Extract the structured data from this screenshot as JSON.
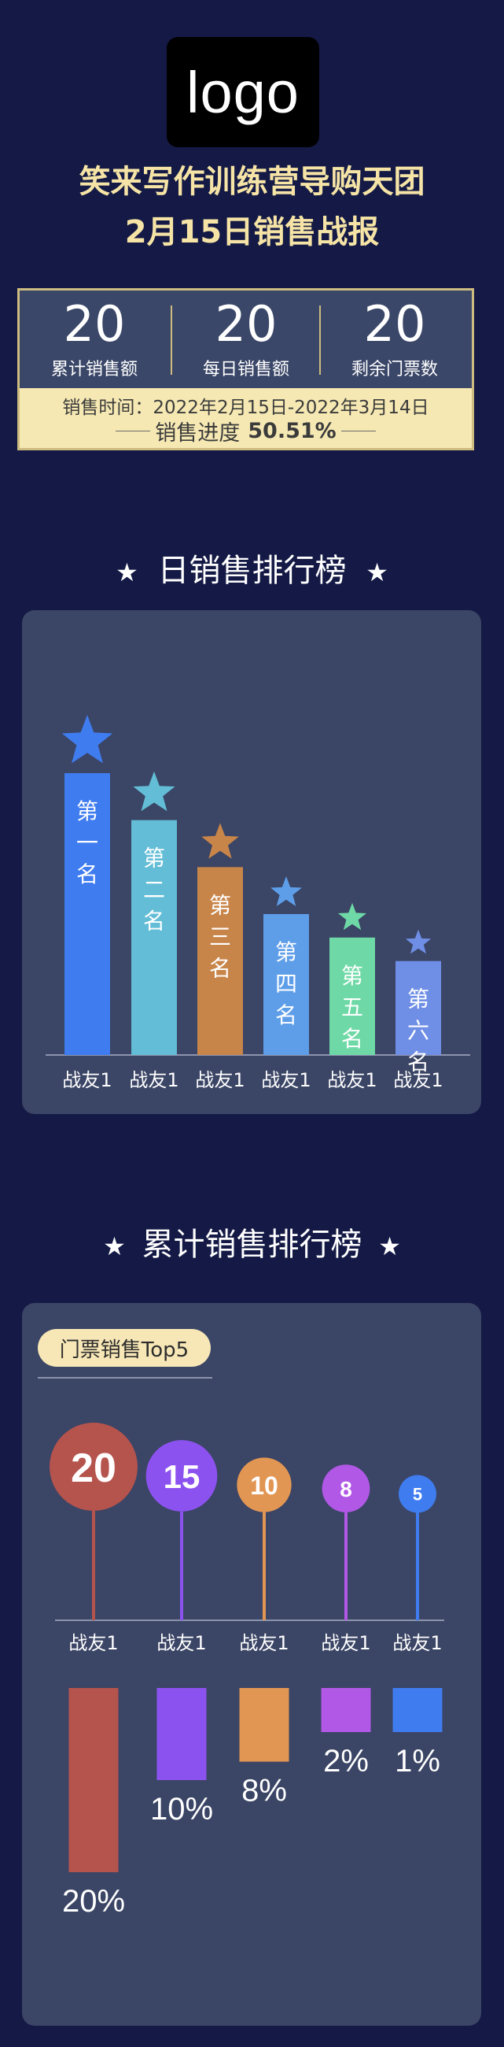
{
  "logo": {
    "text": "logo"
  },
  "header": {
    "title_line1": "笑来写作训练营导购天团",
    "title_line2": "2月15日销售战报"
  },
  "stats": {
    "items": [
      {
        "value": "20",
        "label": "累计销售额"
      },
      {
        "value": "20",
        "label": "每日销售额"
      },
      {
        "value": "20",
        "label": "剩余门票数"
      }
    ],
    "sale_time": "销售时间：2022年2月15日-2022年3月14日",
    "progress_label": "销售进度",
    "progress_value": "50.51%"
  },
  "daily_ranking": {
    "title": "日销售排行榜",
    "star_glyph": "★",
    "chart_data": {
      "type": "bar",
      "categories": [
        "战友1",
        "战友1",
        "战友1",
        "战友1",
        "战友1",
        "战友1"
      ],
      "bar_labels": [
        "第一名",
        "第二名",
        "第三名",
        "第四名",
        "第五名",
        "第六名"
      ],
      "values": [
        6,
        5,
        4,
        3,
        2.5,
        2
      ],
      "colors": [
        "#3f7cef",
        "#63bdd6",
        "#c8854a",
        "#5e9ee9",
        "#6ed9a6",
        "#6f8fe6"
      ],
      "star_colors": [
        "#3f7cef",
        "#63bdd6",
        "#c8854a",
        "#5e9ee9",
        "#6ed9a6",
        "#6f8fe6"
      ]
    }
  },
  "cumulative_ranking": {
    "title": "累计销售排行榜",
    "star_glyph": "★",
    "tag": "门票销售Top5",
    "chart_data": [
      {
        "type": "lollipop",
        "categories": [
          "战友1",
          "战友1",
          "战友1",
          "战友1",
          "战友1"
        ],
        "values": [
          20,
          15,
          10,
          8,
          5
        ],
        "colors": [
          "#b5534d",
          "#8c52f0",
          "#e29653",
          "#b158e6",
          "#3f7cef"
        ]
      },
      {
        "type": "bar",
        "values": [
          20,
          10,
          8,
          2,
          1
        ],
        "labels": [
          "20%",
          "10%",
          "8%",
          "2%",
          "1%"
        ],
        "colors": [
          "#b5534d",
          "#8c52f0",
          "#e29653",
          "#b158e6",
          "#3f7cef"
        ]
      }
    ]
  }
}
